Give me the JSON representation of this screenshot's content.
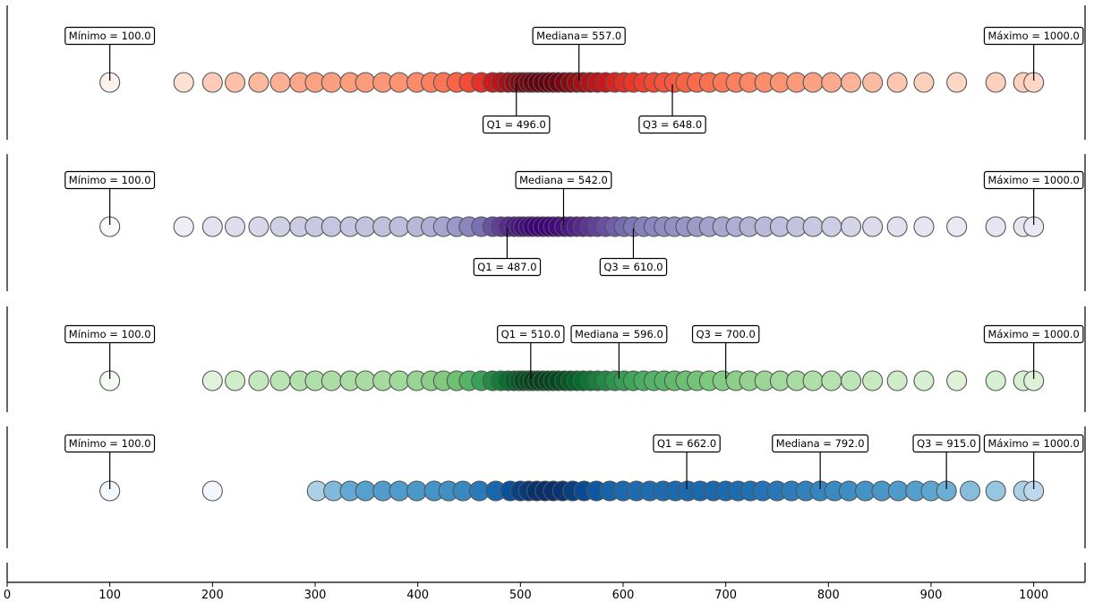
{
  "chart_data": {
    "type": "scatter",
    "xlim": [
      0,
      1050
    ],
    "x_ticks": [
      0,
      100,
      200,
      300,
      400,
      500,
      600,
      700,
      800,
      900,
      1000
    ],
    "grid": false,
    "rows": [
      {
        "cmap": "Reds",
        "stats": {
          "min": 100.0,
          "q1": 496.0,
          "median": 557.0,
          "q3": 648.0,
          "max": 1000.0
        },
        "labels": {
          "min": "Mínimo = 100.0",
          "q1": "Q1 = 496.0",
          "median": "Mediana= 557.0",
          "q3": "Q3 = 648.0",
          "max": "Máximo = 1000.0"
        },
        "label_positions": {
          "min": "above",
          "q1": "below",
          "median": "above",
          "q3": "below",
          "max": "above"
        },
        "values": [
          100,
          172,
          200,
          222,
          245,
          266,
          285,
          300,
          316,
          334,
          349,
          366,
          382,
          399,
          413,
          425,
          438,
          450,
          462,
          473,
          481,
          488,
          494,
          499,
          503,
          508,
          512,
          517,
          522,
          527,
          532,
          537,
          543,
          549,
          555,
          561,
          568,
          575,
          583,
          592,
          601,
          610,
          620,
          630,
          640,
          650,
          661,
          672,
          684,
          697,
          710,
          723,
          738,
          753,
          769,
          785,
          803,
          822,
          843,
          867,
          893,
          925,
          963,
          990,
          1000
        ]
      },
      {
        "cmap": "Purples",
        "stats": {
          "min": 100.0,
          "q1": 487.0,
          "median": 542.0,
          "q3": 610.0,
          "max": 1000.0
        },
        "labels": {
          "min": "Mínimo = 100.0",
          "q1": "Q1 = 487.0",
          "median": "Mediana = 542.0",
          "q3": "Q3 = 610.0",
          "max": "Máximo = 1000.0"
        },
        "label_positions": {
          "min": "above",
          "q1": "below",
          "median": "above",
          "q3": "below",
          "max": "above"
        },
        "values": [
          100,
          172,
          200,
          222,
          245,
          266,
          285,
          300,
          316,
          334,
          349,
          366,
          382,
          399,
          413,
          425,
          438,
          450,
          462,
          473,
          481,
          488,
          494,
          499,
          503,
          508,
          512,
          517,
          522,
          527,
          532,
          537,
          543,
          549,
          555,
          561,
          568,
          575,
          583,
          592,
          601,
          610,
          620,
          630,
          640,
          650,
          661,
          672,
          684,
          697,
          710,
          723,
          738,
          753,
          769,
          785,
          803,
          822,
          843,
          867,
          893,
          925,
          963,
          990,
          1000
        ]
      },
      {
        "cmap": "Greens",
        "stats": {
          "min": 100.0,
          "q1": 510.0,
          "median": 596.0,
          "q3": 700.0,
          "max": 1000.0
        },
        "labels": {
          "min": "Mínimo = 100.0",
          "q1": "Q1 = 510.0",
          "median": "Mediana = 596.0",
          "q3": "Q3 = 700.0",
          "max": "Máximo = 1000.0"
        },
        "label_positions": {
          "min": "above",
          "q1": "above",
          "median": "above",
          "q3": "above",
          "max": "above"
        },
        "values": [
          100,
          200,
          222,
          245,
          266,
          285,
          300,
          316,
          334,
          349,
          366,
          382,
          399,
          413,
          425,
          438,
          450,
          462,
          473,
          481,
          488,
          494,
          499,
          503,
          508,
          512,
          517,
          522,
          527,
          532,
          537,
          543,
          549,
          555,
          561,
          568,
          575,
          583,
          592,
          601,
          610,
          620,
          630,
          640,
          650,
          661,
          672,
          684,
          697,
          710,
          723,
          738,
          753,
          769,
          785,
          803,
          822,
          843,
          867,
          893,
          925,
          963,
          990,
          1000
        ]
      },
      {
        "cmap": "Blues",
        "stats": {
          "min": 100.0,
          "q1": 662.0,
          "median": 792.0,
          "q3": 915.0,
          "max": 1000.0
        },
        "labels": {
          "min": "Mínimo = 100.0",
          "q1": "Q1 = 662.0",
          "median": "Mediana = 792.0",
          "q3": "Q3 = 915.0",
          "max": "Máximo = 1000.0"
        },
        "label_positions": {
          "min": "above",
          "q1": "above",
          "median": "above",
          "q3": "above",
          "max": "above"
        },
        "values": [
          100,
          200,
          302,
          318,
          334,
          349,
          366,
          382,
          399,
          416,
          430,
          444,
          460,
          476,
          490,
          500,
          508,
          516,
          524,
          532,
          541,
          551,
          562,
          574,
          587,
          600,
          613,
          626,
          639,
          651,
          663,
          675,
          688,
          700,
          712,
          724,
          736,
          750,
          764,
          778,
          792,
          806,
          820,
          836,
          852,
          868,
          885,
          900,
          915,
          938,
          963,
          990,
          1000
        ]
      }
    ]
  }
}
